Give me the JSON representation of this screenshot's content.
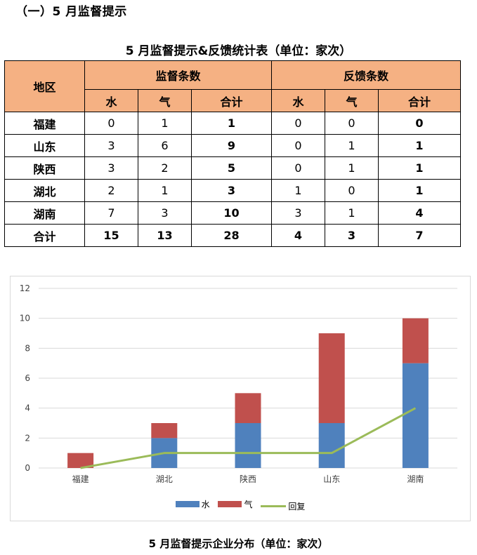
{
  "section_title": "（一）5 月监督提示",
  "table": {
    "title": "5 月监督提示&反馈统计表（单位：家次）",
    "header_region": "地区",
    "group1": "监督条数",
    "group2": "反馈条数",
    "sub_headers": [
      "水",
      "气",
      "合计",
      "水",
      "气",
      "合计"
    ],
    "rows": [
      {
        "region": "福建",
        "values": [
          "0",
          "1",
          "1",
          "0",
          "0",
          "0"
        ]
      },
      {
        "region": "山东",
        "values": [
          "3",
          "6",
          "9",
          "0",
          "1",
          "1"
        ]
      },
      {
        "region": "陕西",
        "values": [
          "3",
          "2",
          "5",
          "0",
          "1",
          "1"
        ]
      },
      {
        "region": "湖北",
        "values": [
          "2",
          "1",
          "3",
          "1",
          "0",
          "1"
        ]
      },
      {
        "region": "湖南",
        "values": [
          "7",
          "3",
          "10",
          "3",
          "1",
          "4"
        ]
      }
    ],
    "total_row": {
      "region": "合计",
      "values": [
        "15",
        "13",
        "28",
        "4",
        "3",
        "7"
      ]
    }
  },
  "chart_data": {
    "type": "bar",
    "stacked": true,
    "categories": [
      "福建",
      "湖北",
      "陕西",
      "山东",
      "湖南"
    ],
    "series": [
      {
        "name": "水",
        "type": "bar",
        "color": "#4f81bd",
        "values": [
          0,
          2,
          3,
          3,
          7
        ]
      },
      {
        "name": "气",
        "type": "bar",
        "color": "#c0504d",
        "values": [
          1,
          1,
          2,
          6,
          3
        ]
      },
      {
        "name": "回复",
        "type": "line",
        "color": "#9bbb59",
        "values": [
          0,
          1,
          1,
          1,
          4
        ]
      }
    ],
    "ylim": [
      0,
      12
    ],
    "yticks": [
      0,
      2,
      4,
      6,
      8,
      10,
      12
    ],
    "grid": true,
    "legend_position": "bottom",
    "title": ""
  },
  "chart_caption": "5 月监督提示企业分布（单位：家次）"
}
